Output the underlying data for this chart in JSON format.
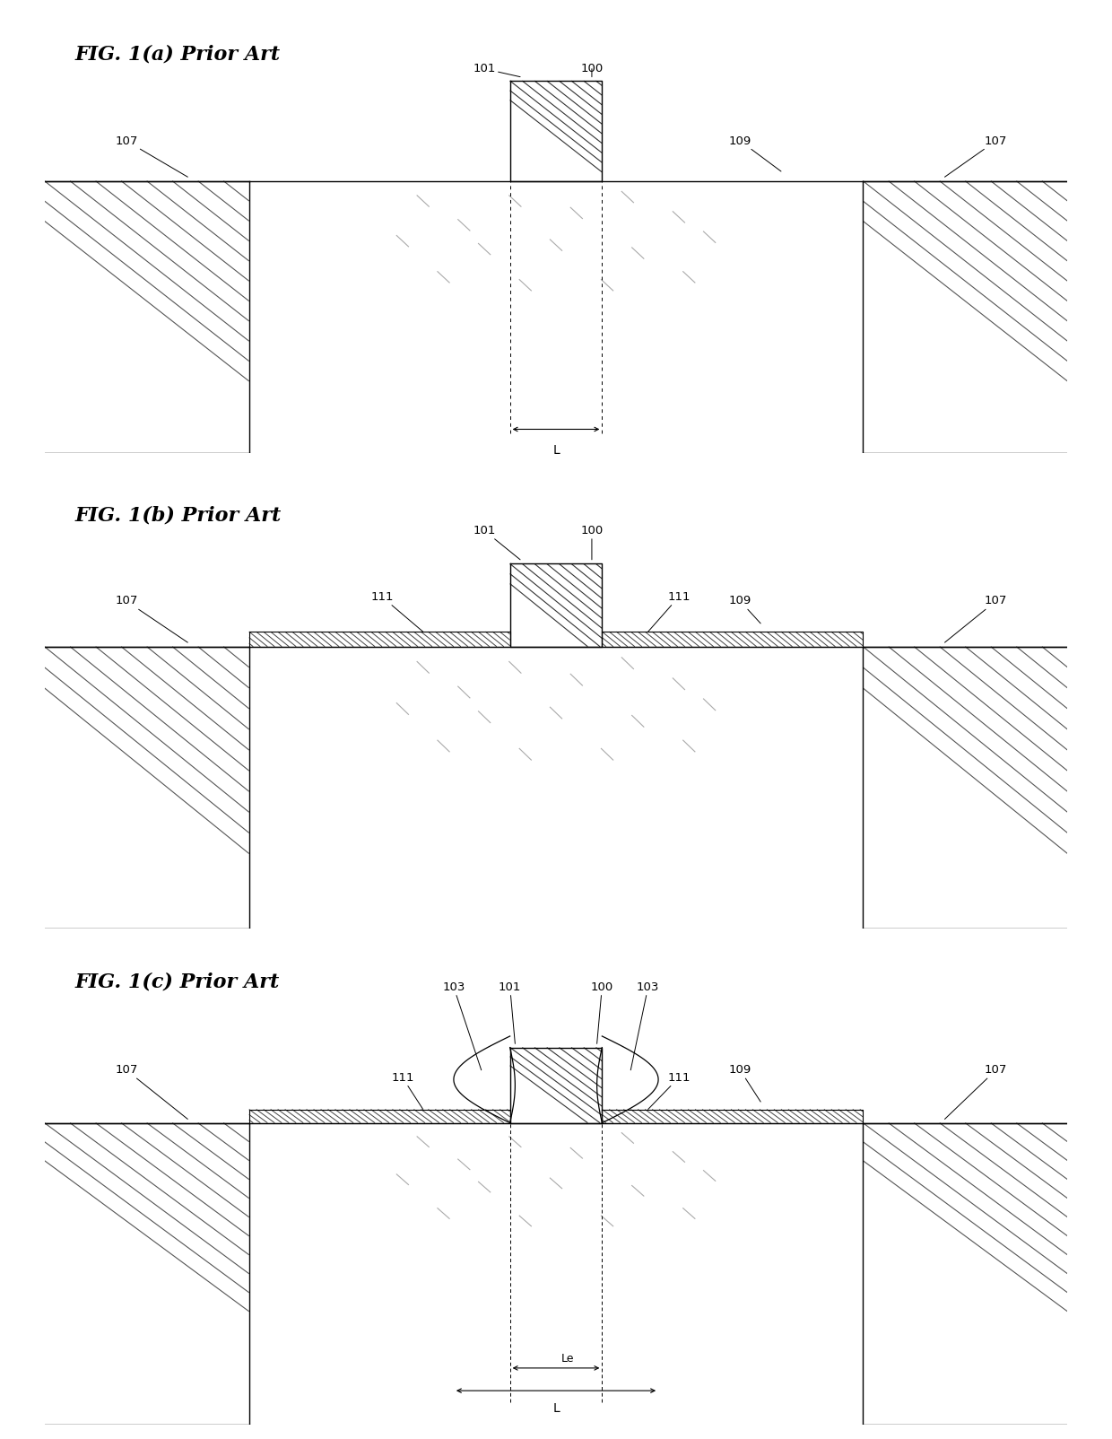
{
  "bg_color": "#ffffff",
  "line_color": "#000000",
  "fig_width": 12.4,
  "fig_height": 16.04,
  "titles": [
    "FIG. 1(a) Prior Art",
    "FIG. 1(b) Prior Art",
    "FIG. 1(c) Prior Art"
  ],
  "gate_hatch": "///",
  "iso_hatch_color": "#555555",
  "oxide_hatch_color": "#555555",
  "scatter_color": "#999999"
}
